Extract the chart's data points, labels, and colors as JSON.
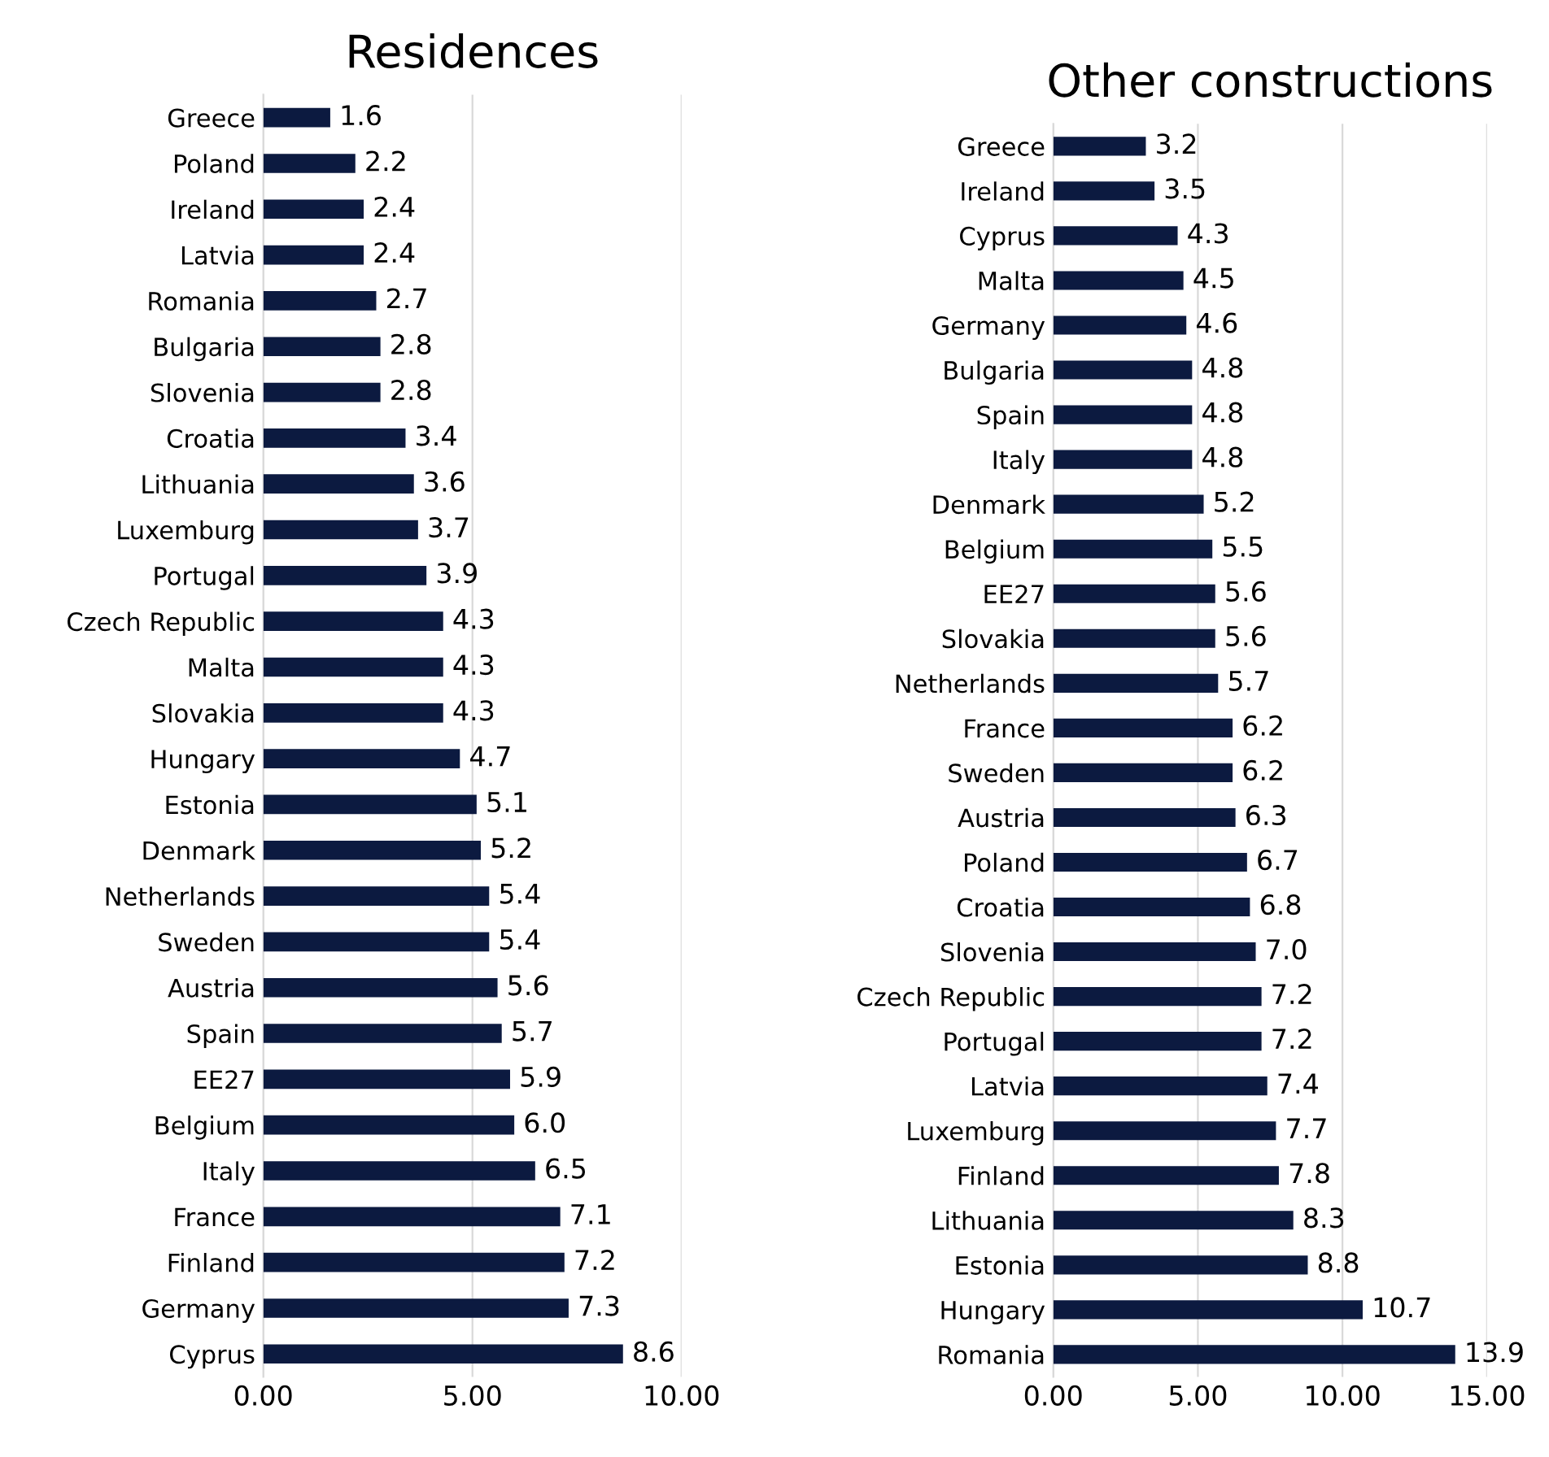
{
  "chart_data": [
    {
      "type": "bar",
      "orientation": "horizontal",
      "title": "Residences",
      "value_labels": [
        "1.6",
        "2.2",
        "2.4",
        "2.4",
        "2.7",
        "2.8",
        "2.8",
        "3.4",
        "3.6",
        "3.7",
        "3.9",
        "4.3",
        "4.3",
        "4.3",
        "4.7",
        "5.1",
        "5.2",
        "5.4",
        "5.4",
        "5.6",
        "5.7",
        "5.9",
        "6.0",
        "6.5",
        "7.1",
        "7.2",
        "7.3",
        "8.6"
      ],
      "grid": "x",
      "color": "#0c1a40",
      "categories": [
        "Greece",
        "Poland",
        "Ireland",
        "Latvia",
        "Romania",
        "Bulgaria",
        "Slovenia",
        "Croatia",
        "Lithuania",
        "Luxemburg",
        "Portugal",
        "Czech Republic",
        "Malta",
        "Slovakia",
        "Hungary",
        "Estonia",
        "Denmark",
        "Netherlands",
        "Sweden",
        "Austria",
        "Spain",
        "EE27",
        "Belgium",
        "Italy",
        "France",
        "Finland",
        "Germany",
        "Cyprus"
      ],
      "values": [
        1.6,
        2.2,
        2.4,
        2.4,
        2.7,
        2.8,
        2.8,
        3.4,
        3.6,
        3.7,
        3.9,
        4.3,
        4.3,
        4.3,
        4.7,
        5.1,
        5.2,
        5.4,
        5.4,
        5.6,
        5.7,
        5.9,
        6.0,
        6.5,
        7.1,
        7.2,
        7.3,
        8.6
      ],
      "xlim": [
        0,
        10
      ],
      "xticks": [
        {
          "value": 0,
          "label": "0.00"
        },
        {
          "value": 5,
          "label": "5.00"
        },
        {
          "value": 10,
          "label": "10.00"
        }
      ]
    },
    {
      "type": "bar",
      "orientation": "horizontal",
      "title": "Other constructions",
      "value_labels": [
        "3.2",
        "3.5",
        "4.3",
        "4.5",
        "4.6",
        "4.8",
        "4.8",
        "4.8",
        "5.2",
        "5.5",
        "5.6",
        "5.6",
        "5.7",
        "6.2",
        "6.2",
        "6.3",
        "6.7",
        "6.8",
        "7.0",
        "7.2",
        "7.2",
        "7.4",
        "7.7",
        "7.8",
        "8.3",
        "8.8",
        "10.7",
        "13.9"
      ],
      "grid": "x",
      "color": "#0c1a40",
      "categories": [
        "Greece",
        "Ireland",
        "Cyprus",
        "Malta",
        "Germany",
        "Bulgaria",
        "Spain",
        "Italy",
        "Denmark",
        "Belgium",
        "EE27",
        "Slovakia",
        "Netherlands",
        "France",
        "Sweden",
        "Austria",
        "Poland",
        "Croatia",
        "Slovenia",
        "Czech Republic",
        "Portugal",
        "Latvia",
        "Luxemburg",
        "Finland",
        "Lithuania",
        "Estonia",
        "Hungary",
        "Romania"
      ],
      "values": [
        3.2,
        3.5,
        4.3,
        4.5,
        4.6,
        4.8,
        4.8,
        4.8,
        5.2,
        5.5,
        5.6,
        5.6,
        5.7,
        6.2,
        6.2,
        6.3,
        6.7,
        6.8,
        7.0,
        7.2,
        7.2,
        7.4,
        7.7,
        7.8,
        8.3,
        8.8,
        10.7,
        13.9
      ],
      "xlim": [
        0,
        15
      ],
      "xticks": [
        {
          "value": 0,
          "label": "0.00"
        },
        {
          "value": 5,
          "label": "5.00"
        },
        {
          "value": 10,
          "label": "10.00"
        },
        {
          "value": 15,
          "label": "15.00"
        }
      ]
    }
  ]
}
